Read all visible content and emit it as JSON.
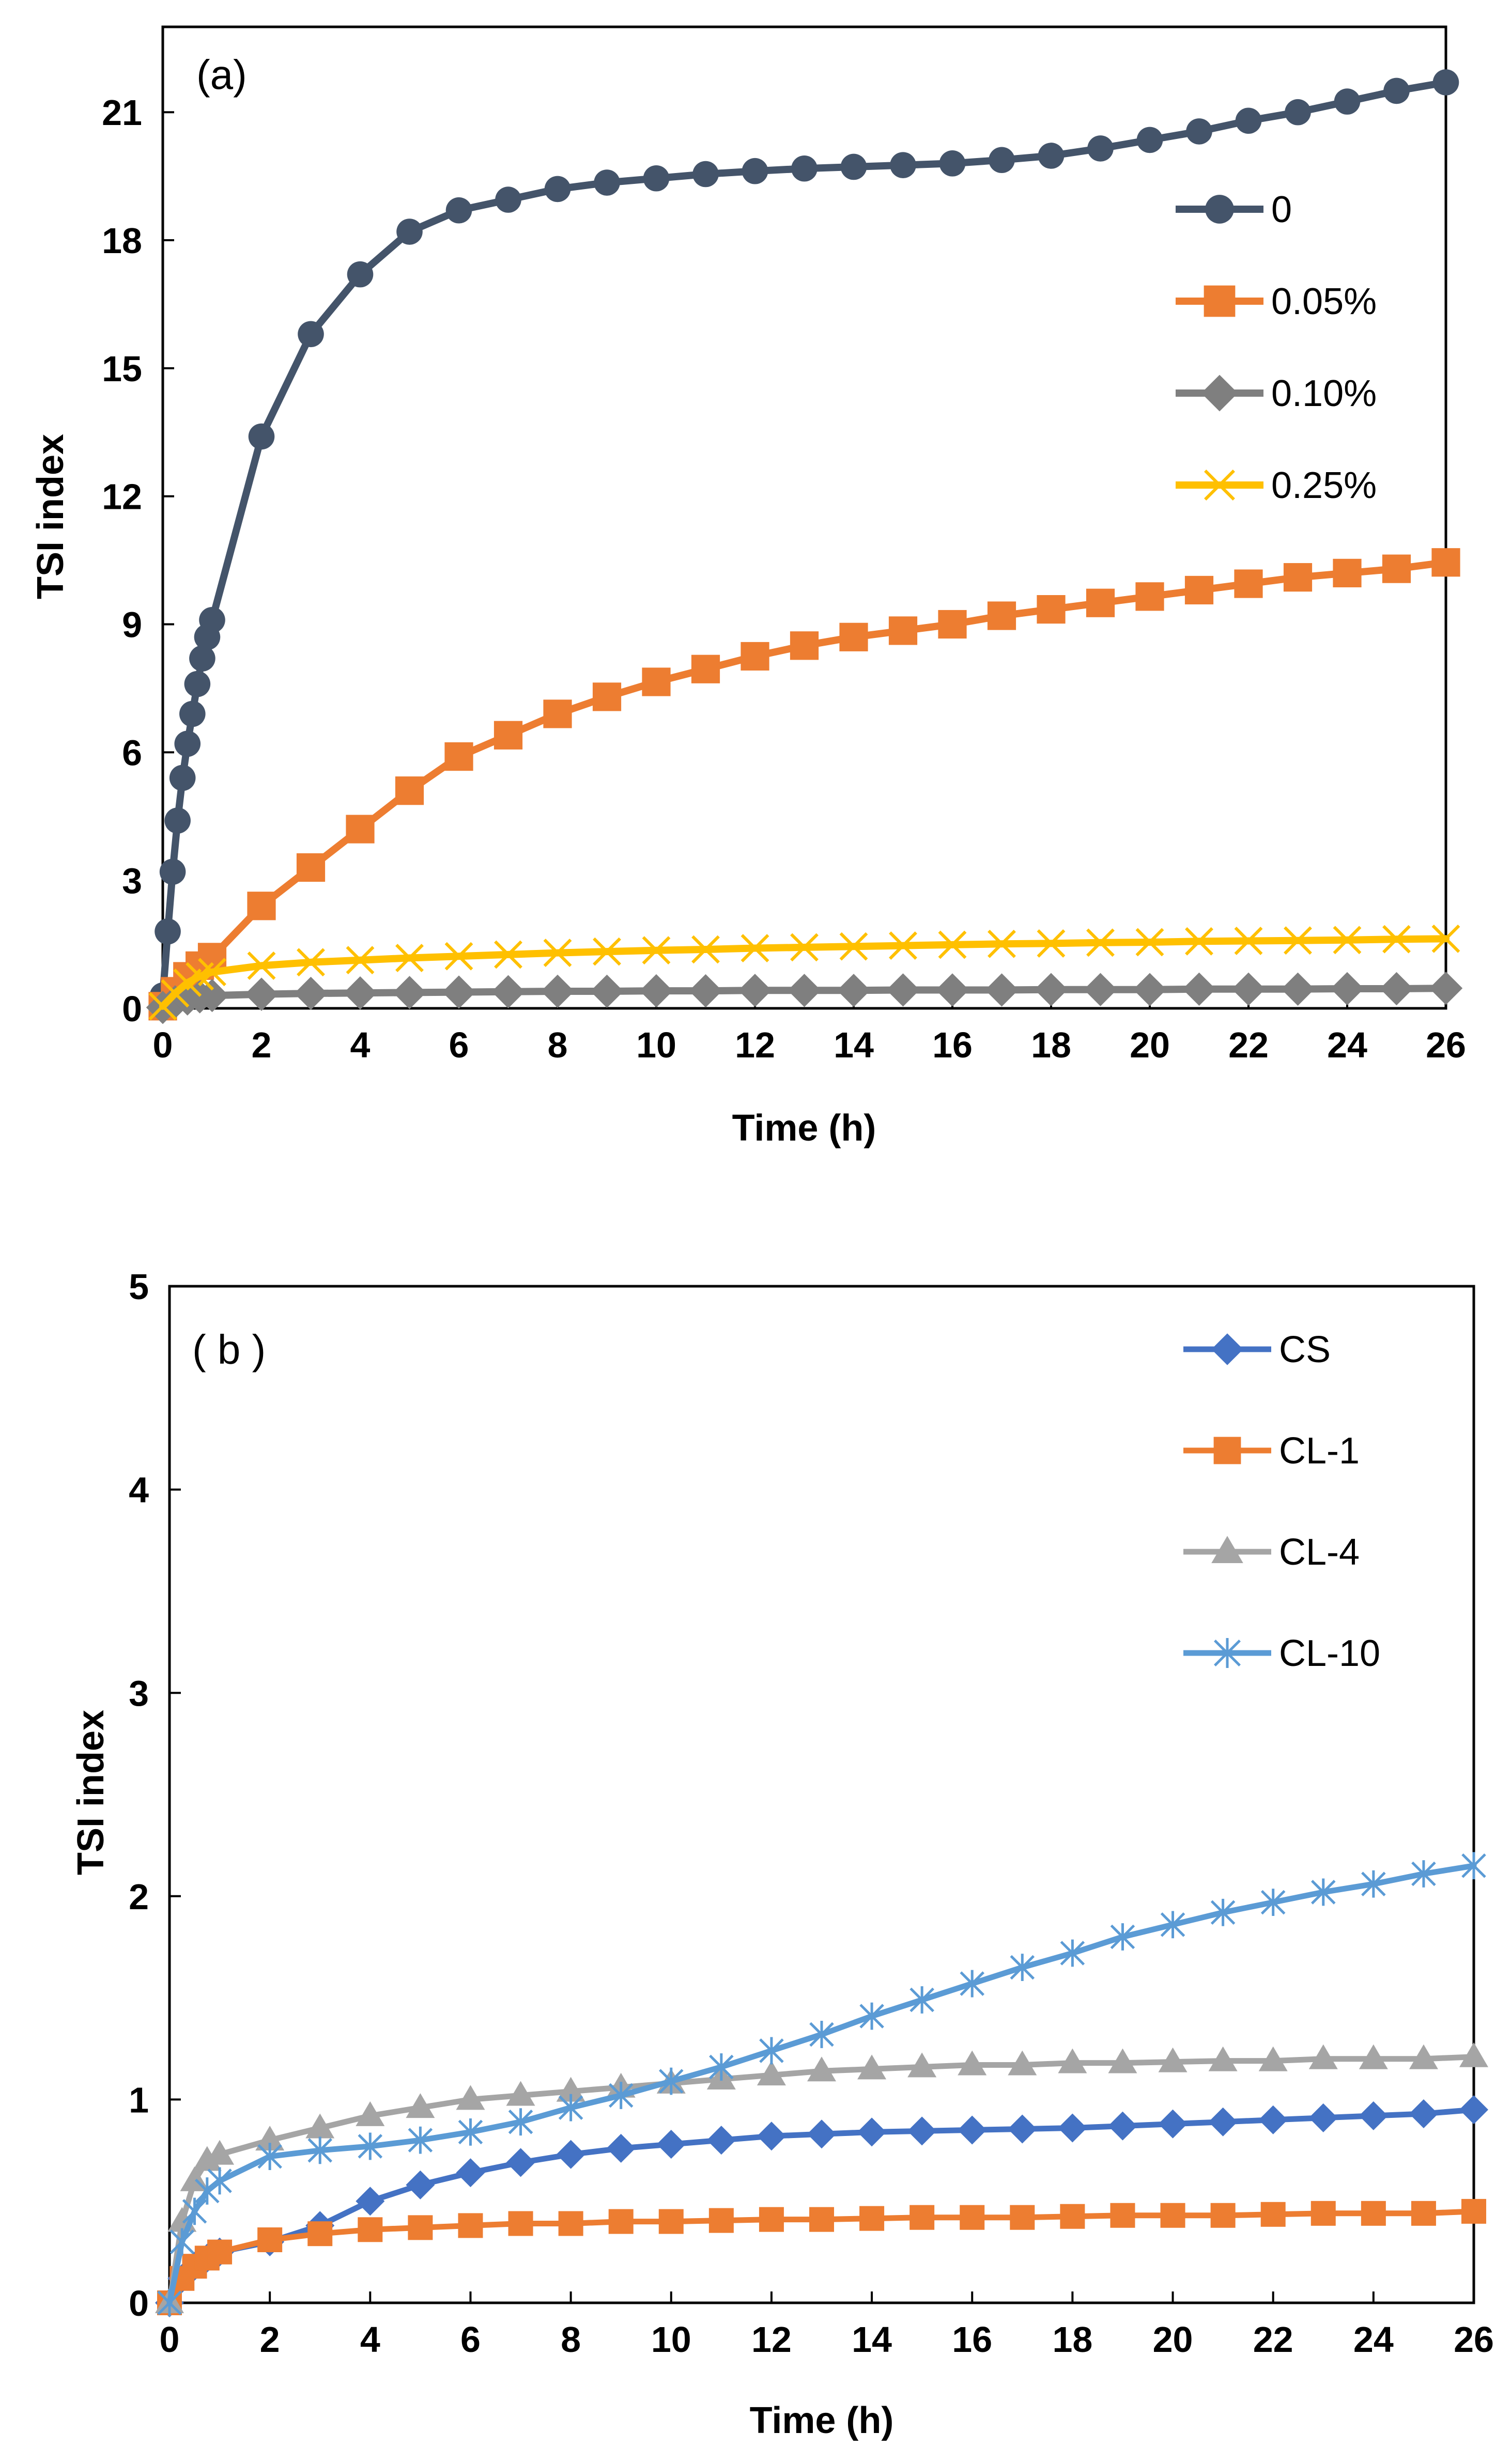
{
  "chart_data": [
    {
      "type": "line",
      "panel_label": "(a)",
      "xlabel": "Time (h)",
      "ylabel": "TSI index",
      "xlim": [
        0,
        26
      ],
      "ylim": [
        0,
        23
      ],
      "xticks": [
        0,
        2,
        4,
        6,
        8,
        10,
        12,
        14,
        16,
        18,
        20,
        22,
        24,
        26
      ],
      "yticks": [
        0,
        3,
        6,
        9,
        12,
        15,
        18,
        21
      ],
      "legend_position": "top-right",
      "series": [
        {
          "name": "0",
          "color": "#44546a",
          "marker": "circle",
          "x": [
            0,
            0.1,
            0.2,
            0.3,
            0.4,
            0.5,
            0.6,
            0.7,
            0.8,
            0.9,
            1,
            2,
            3,
            4,
            5,
            6,
            7,
            8,
            9,
            10,
            11,
            12,
            13,
            14,
            15,
            16,
            17,
            18,
            19,
            20,
            21,
            22,
            23,
            24,
            25,
            26
          ],
          "y": [
            0.3,
            1.8,
            3.2,
            4.4,
            5.4,
            6.2,
            6.9,
            7.6,
            8.2,
            8.7,
            9.1,
            13.4,
            15.8,
            17.2,
            18.2,
            18.7,
            18.95,
            19.2,
            19.35,
            19.45,
            19.55,
            19.62,
            19.68,
            19.72,
            19.76,
            19.8,
            19.88,
            19.98,
            20.15,
            20.35,
            20.55,
            20.8,
            21.0,
            21.25,
            21.5,
            21.7
          ]
        },
        {
          "name": "0.05%",
          "color": "#ed7d31",
          "marker": "square",
          "x": [
            0,
            0.25,
            0.5,
            0.75,
            1,
            2,
            3,
            4,
            5,
            6,
            7,
            8,
            9,
            10,
            11,
            12,
            13,
            14,
            15,
            16,
            17,
            18,
            19,
            20,
            21,
            22,
            23,
            24,
            25,
            26
          ],
          "y": [
            0.05,
            0.4,
            0.75,
            1.0,
            1.2,
            2.4,
            3.3,
            4.2,
            5.1,
            5.9,
            6.4,
            6.9,
            7.3,
            7.65,
            7.95,
            8.25,
            8.5,
            8.7,
            8.85,
            9.0,
            9.2,
            9.35,
            9.5,
            9.65,
            9.8,
            9.95,
            10.1,
            10.2,
            10.3,
            10.45
          ]
        },
        {
          "name": "0.10%",
          "color": "#7f7f7f",
          "marker": "diamond",
          "x": [
            0,
            0.25,
            0.5,
            0.75,
            1,
            2,
            3,
            4,
            5,
            6,
            7,
            8,
            9,
            10,
            11,
            12,
            13,
            14,
            15,
            16,
            17,
            18,
            19,
            20,
            21,
            22,
            23,
            24,
            25,
            26
          ],
          "y": [
            0.02,
            0.15,
            0.22,
            0.27,
            0.3,
            0.33,
            0.35,
            0.36,
            0.37,
            0.38,
            0.39,
            0.4,
            0.4,
            0.41,
            0.41,
            0.42,
            0.42,
            0.42,
            0.43,
            0.43,
            0.43,
            0.44,
            0.44,
            0.44,
            0.45,
            0.45,
            0.45,
            0.46,
            0.46,
            0.47
          ]
        },
        {
          "name": "0.25%",
          "color": "#ffc000",
          "marker": "x",
          "x": [
            0,
            0.25,
            0.5,
            0.75,
            1,
            2,
            3,
            4,
            5,
            6,
            7,
            8,
            9,
            10,
            11,
            12,
            13,
            14,
            15,
            16,
            17,
            18,
            19,
            20,
            21,
            22,
            23,
            24,
            25,
            26
          ],
          "y": [
            0.05,
            0.35,
            0.6,
            0.75,
            0.85,
            1.0,
            1.08,
            1.13,
            1.18,
            1.22,
            1.26,
            1.3,
            1.33,
            1.36,
            1.38,
            1.41,
            1.43,
            1.45,
            1.47,
            1.49,
            1.51,
            1.52,
            1.54,
            1.55,
            1.57,
            1.58,
            1.59,
            1.6,
            1.62,
            1.63
          ]
        }
      ]
    },
    {
      "type": "line",
      "panel_label": "( b )",
      "xlabel": "Time (h)",
      "ylabel": "TSI index",
      "xlim": [
        0,
        26
      ],
      "ylim": [
        0,
        5
      ],
      "xticks": [
        0,
        2,
        4,
        6,
        8,
        10,
        12,
        14,
        16,
        18,
        20,
        22,
        24,
        26
      ],
      "yticks": [
        0,
        1,
        2,
        3,
        4,
        5
      ],
      "legend_position": "top-right",
      "series": [
        {
          "name": "CS",
          "color": "#4472c4",
          "marker": "diamond",
          "x": [
            0,
            0.25,
            0.5,
            0.75,
            1,
            2,
            3,
            4,
            5,
            6,
            7,
            8,
            9,
            10,
            11,
            12,
            13,
            14,
            15,
            16,
            17,
            18,
            19,
            20,
            21,
            22,
            23,
            24,
            25,
            26
          ],
          "y": [
            0,
            0.12,
            0.18,
            0.22,
            0.25,
            0.3,
            0.38,
            0.5,
            0.58,
            0.64,
            0.69,
            0.73,
            0.76,
            0.78,
            0.8,
            0.82,
            0.83,
            0.84,
            0.845,
            0.85,
            0.855,
            0.86,
            0.87,
            0.88,
            0.89,
            0.9,
            0.91,
            0.92,
            0.93,
            0.95
          ]
        },
        {
          "name": "CL-1",
          "color": "#ed7d31",
          "marker": "square",
          "x": [
            0,
            0.25,
            0.5,
            0.75,
            1,
            2,
            3,
            4,
            5,
            6,
            7,
            8,
            9,
            10,
            11,
            12,
            13,
            14,
            15,
            16,
            17,
            18,
            19,
            20,
            21,
            22,
            23,
            24,
            25,
            26
          ],
          "y": [
            0,
            0.12,
            0.18,
            0.22,
            0.25,
            0.31,
            0.34,
            0.36,
            0.37,
            0.38,
            0.39,
            0.39,
            0.4,
            0.4,
            0.405,
            0.41,
            0.41,
            0.415,
            0.42,
            0.42,
            0.42,
            0.425,
            0.43,
            0.43,
            0.43,
            0.435,
            0.44,
            0.44,
            0.44,
            0.45
          ]
        },
        {
          "name": "CL-4",
          "color": "#a5a5a5",
          "marker": "triangle",
          "x": [
            0,
            0.25,
            0.5,
            0.75,
            1,
            2,
            3,
            4,
            5,
            6,
            7,
            8,
            9,
            10,
            11,
            12,
            13,
            14,
            15,
            16,
            17,
            18,
            19,
            20,
            21,
            22,
            23,
            24,
            25,
            26
          ],
          "y": [
            0,
            0.4,
            0.6,
            0.7,
            0.73,
            0.8,
            0.86,
            0.92,
            0.96,
            1.0,
            1.02,
            1.04,
            1.06,
            1.08,
            1.1,
            1.12,
            1.14,
            1.15,
            1.16,
            1.17,
            1.17,
            1.18,
            1.18,
            1.185,
            1.19,
            1.19,
            1.2,
            1.2,
            1.2,
            1.21
          ]
        },
        {
          "name": "CL-10",
          "color": "#5b9bd5",
          "marker": "asterisk",
          "x": [
            0,
            0.25,
            0.5,
            0.75,
            1,
            2,
            3,
            4,
            5,
            6,
            7,
            8,
            9,
            10,
            11,
            12,
            13,
            14,
            15,
            16,
            17,
            18,
            19,
            20,
            21,
            22,
            23,
            24,
            25,
            26
          ],
          "y": [
            0,
            0.3,
            0.45,
            0.55,
            0.6,
            0.72,
            0.75,
            0.77,
            0.8,
            0.84,
            0.89,
            0.96,
            1.02,
            1.09,
            1.16,
            1.24,
            1.32,
            1.41,
            1.49,
            1.57,
            1.65,
            1.72,
            1.8,
            1.86,
            1.92,
            1.97,
            2.02,
            2.06,
            2.11,
            2.15
          ]
        }
      ]
    }
  ]
}
